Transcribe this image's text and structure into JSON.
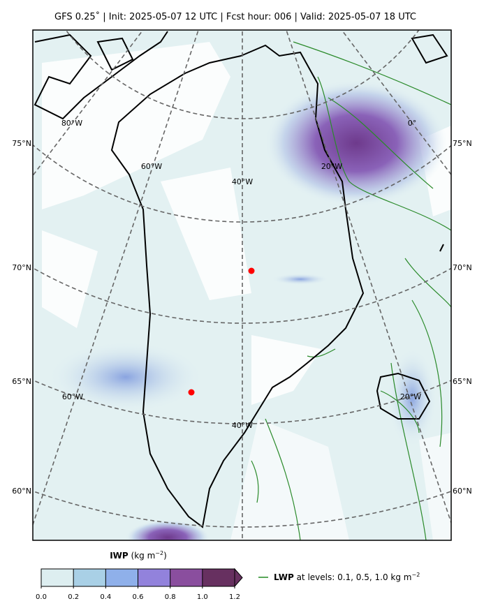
{
  "header": {
    "title": "GFS 0.25˚  |  Init: 2025-05-07 12 UTC  |  Fcst hour: 006  |  Valid: 2025-05-07 18 UTC"
  },
  "map": {
    "lat_labels": [
      "75°N",
      "70°N",
      "65°N",
      "60°N"
    ],
    "lon_labels": [
      "80°W",
      "0°",
      "60°W",
      "20°W",
      "40°W",
      "60°W",
      "20°W",
      "40°W"
    ]
  },
  "colorbar": {
    "label": "IWP",
    "unit": "(kg m",
    "unit_exp": "−2",
    "unit_close": ")",
    "lim": [
      0,
      1.2
    ],
    "ticks": [
      {
        "value": 0,
        "label": "0.0"
      },
      0.2,
      0.4,
      0.6,
      0.8,
      {
        "value": 1,
        "label": "1.0"
      },
      1.2
    ],
    "colors": [
      "#ddeef0",
      "#a9d0e6",
      "#8fb0ea",
      "#9282dc",
      "#8a4e9e",
      "#673060"
    ]
  },
  "legend": {
    "label": "LWP",
    "text": "at levels: 0.1, 0.5, 1.0  kg m",
    "exp": "−2",
    "color": "#228b22"
  }
}
